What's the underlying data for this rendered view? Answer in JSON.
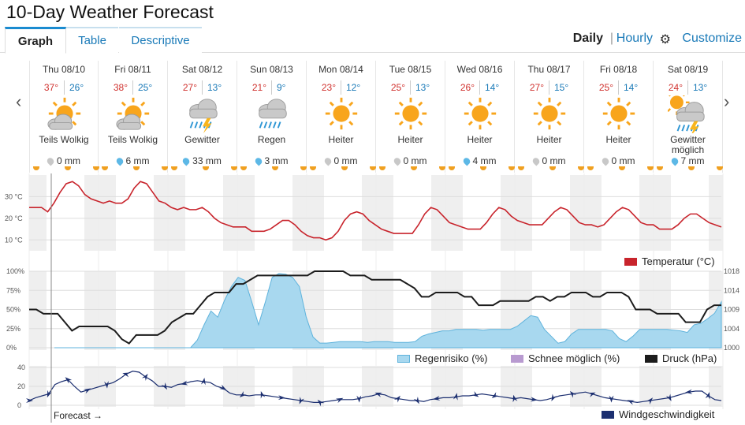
{
  "page_title": "10-Day Weather Forecast",
  "tabs": [
    {
      "label": "Graph",
      "active": true
    },
    {
      "label": "Table",
      "active": false
    },
    {
      "label": "Descriptive",
      "active": false
    }
  ],
  "view": {
    "daily": "Daily",
    "separator": "|",
    "hourly": "Hourly",
    "customize": "Customize"
  },
  "colors": {
    "accent": "#1a8bd0",
    "temp_line": "#c8242c",
    "rain_fill": "#a8d8ef",
    "pressure": "#1c1c1c",
    "wind": "#1c2f70",
    "snow": "#b89ad0"
  },
  "days": [
    {
      "date": "Thu 08/10",
      "hi": "37°",
      "lo": "26°",
      "condition": "Teils Wolkig",
      "icon": "partly-cloudy-icon",
      "precip": "0 mm",
      "has_rain": false
    },
    {
      "date": "Fri 08/11",
      "hi": "38°",
      "lo": "25°",
      "condition": "Teils Wolkig",
      "icon": "partly-cloudy-icon",
      "precip": "6 mm",
      "has_rain": true
    },
    {
      "date": "Sat 08/12",
      "hi": "27°",
      "lo": "13°",
      "condition": "Gewitter",
      "icon": "thunderstorm-icon",
      "precip": "33 mm",
      "has_rain": true
    },
    {
      "date": "Sun 08/13",
      "hi": "21°",
      "lo": "9°",
      "condition": "Regen",
      "icon": "rain-icon",
      "precip": "3 mm",
      "has_rain": true
    },
    {
      "date": "Mon 08/14",
      "hi": "23°",
      "lo": "12°",
      "condition": "Heiter",
      "icon": "sun-icon",
      "precip": "0 mm",
      "has_rain": false
    },
    {
      "date": "Tue 08/15",
      "hi": "25°",
      "lo": "13°",
      "condition": "Heiter",
      "icon": "sun-icon",
      "precip": "0 mm",
      "has_rain": false
    },
    {
      "date": "Wed 08/16",
      "hi": "26°",
      "lo": "14°",
      "condition": "Heiter",
      "icon": "sun-icon",
      "precip": "4 mm",
      "has_rain": true
    },
    {
      "date": "Thu 08/17",
      "hi": "27°",
      "lo": "15°",
      "condition": "Heiter",
      "icon": "sun-icon",
      "precip": "0 mm",
      "has_rain": false
    },
    {
      "date": "Fri 08/18",
      "hi": "25°",
      "lo": "14°",
      "condition": "Heiter",
      "icon": "sun-icon",
      "precip": "0 mm",
      "has_rain": false
    },
    {
      "date": "Sat 08/19",
      "hi": "24°",
      "lo": "13°",
      "condition": "Gewitter möglich",
      "icon": "sun-thunder-icon",
      "precip": "7 mm",
      "has_rain": true
    }
  ],
  "legend": {
    "temperature": "Temperatur (°C)",
    "rain_risk": "Regenrisiko (%)",
    "snow": "Schnee möglich (%)",
    "pressure": "Druck (hPa)",
    "wind": "Windgeschwindigkeit",
    "forecast": "Forecast →"
  },
  "chart_data": [
    {
      "type": "line",
      "series": [
        {
          "name": "Temperatur (°C)",
          "values": [
            25,
            25,
            25,
            23,
            27,
            32,
            36,
            37,
            35,
            31,
            29,
            28,
            27,
            28,
            27,
            27,
            29,
            34,
            37,
            36,
            32,
            28,
            27,
            25,
            24,
            25,
            24,
            24,
            25,
            23,
            20,
            18,
            17,
            16,
            16,
            16,
            14,
            14,
            14,
            15,
            17,
            19,
            19,
            17,
            14,
            12,
            11,
            11,
            10,
            11,
            14,
            19,
            22,
            23,
            22,
            19,
            17,
            15,
            14,
            13,
            13,
            13,
            13,
            17,
            22,
            25,
            24,
            21,
            18,
            17,
            16,
            15,
            15,
            15,
            18,
            22,
            25,
            24,
            21,
            19,
            18,
            17,
            17,
            17,
            20,
            23,
            25,
            24,
            21,
            18,
            17,
            17,
            16,
            17,
            20,
            23,
            25,
            24,
            21,
            18,
            17,
            17,
            15,
            15,
            15,
            17,
            20,
            22,
            22,
            20,
            18,
            17,
            16
          ]
        }
      ],
      "y_ticks": [
        "30 °C",
        "20 °C",
        "10 °C"
      ],
      "ylim": [
        5,
        40
      ]
    },
    {
      "type": "area",
      "series": [
        {
          "name": "Regenrisiko (%)",
          "values": [
            0,
            0,
            0,
            0,
            0,
            0,
            0,
            0,
            0,
            0,
            0,
            0,
            0,
            0,
            0,
            0,
            0,
            0,
            0,
            0,
            0,
            10,
            30,
            48,
            40,
            62,
            80,
            92,
            88,
            60,
            30,
            60,
            92,
            97,
            96,
            92,
            80,
            40,
            14,
            6,
            6,
            7,
            8,
            8,
            8,
            8,
            7,
            8,
            8,
            8,
            7,
            7,
            7,
            8,
            15,
            18,
            20,
            22,
            22,
            24,
            24,
            24,
            24,
            23,
            24,
            24,
            24,
            24,
            28,
            35,
            42,
            40,
            24,
            15,
            6,
            8,
            18,
            24,
            24,
            24,
            24,
            24,
            22,
            12,
            8,
            15,
            24,
            24,
            24,
            24,
            24,
            23,
            22,
            20,
            30,
            32,
            38,
            45,
            60
          ]
        },
        {
          "name": "Druck (hPa)",
          "values": [
            1009,
            1009,
            1008,
            1008,
            1008,
            1006,
            1004,
            1005,
            1005,
            1005,
            1005,
            1005,
            1004,
            1002,
            1001,
            1003,
            1003,
            1003,
            1003,
            1004,
            1006,
            1007,
            1008,
            1008,
            1010,
            1012,
            1013,
            1013,
            1013,
            1015,
            1015,
            1016,
            1017,
            1017,
            1017,
            1017,
            1017,
            1017,
            1017,
            1017,
            1018,
            1018,
            1018,
            1018,
            1018,
            1017,
            1017,
            1017,
            1016,
            1016,
            1016,
            1016,
            1016,
            1015,
            1014,
            1012,
            1012,
            1013,
            1013,
            1013,
            1013,
            1012,
            1012,
            1010,
            1010,
            1010,
            1011,
            1011,
            1011,
            1011,
            1011,
            1012,
            1012,
            1011,
            1012,
            1012,
            1013,
            1013,
            1013,
            1012,
            1012,
            1013,
            1013,
            1013,
            1012,
            1009,
            1009,
            1009,
            1008,
            1008,
            1008,
            1008,
            1006,
            1006,
            1006,
            1009,
            1010,
            1010
          ]
        }
      ],
      "y_ticks_left": [
        "100%",
        "75%",
        "50%",
        "25%",
        "0%"
      ],
      "y_ticks_right": [
        "1018",
        "1014",
        "1009",
        "1004",
        "1000"
      ],
      "ylim_left": [
        0,
        100
      ],
      "ylim_right": [
        1000,
        1018
      ]
    },
    {
      "type": "line",
      "series": [
        {
          "name": "Windgeschwindigkeit",
          "values": [
            5,
            8,
            10,
            12,
            22,
            25,
            27,
            20,
            14,
            16,
            18,
            20,
            22,
            24,
            28,
            33,
            36,
            35,
            30,
            26,
            20,
            20,
            19,
            22,
            23,
            25,
            26,
            25,
            24,
            20,
            18,
            13,
            11,
            11,
            10,
            11,
            11,
            10,
            9,
            8,
            7,
            6,
            5,
            4,
            3,
            3,
            4,
            5,
            6,
            6,
            6,
            7,
            9,
            10,
            12,
            11,
            8,
            7,
            6,
            5,
            5,
            4,
            6,
            7,
            8,
            8,
            9,
            10,
            10,
            11,
            12,
            11,
            10,
            9,
            8,
            7,
            8,
            7,
            6,
            5,
            6,
            8,
            10,
            11,
            12,
            13,
            14,
            12,
            10,
            8,
            7,
            6,
            5,
            4,
            3,
            4,
            5,
            6,
            7,
            8,
            10,
            12,
            14,
            15,
            15,
            10,
            6,
            5
          ]
        }
      ],
      "y_ticks": [
        "40",
        "20",
        "0"
      ],
      "ylim": [
        0,
        40
      ]
    }
  ]
}
